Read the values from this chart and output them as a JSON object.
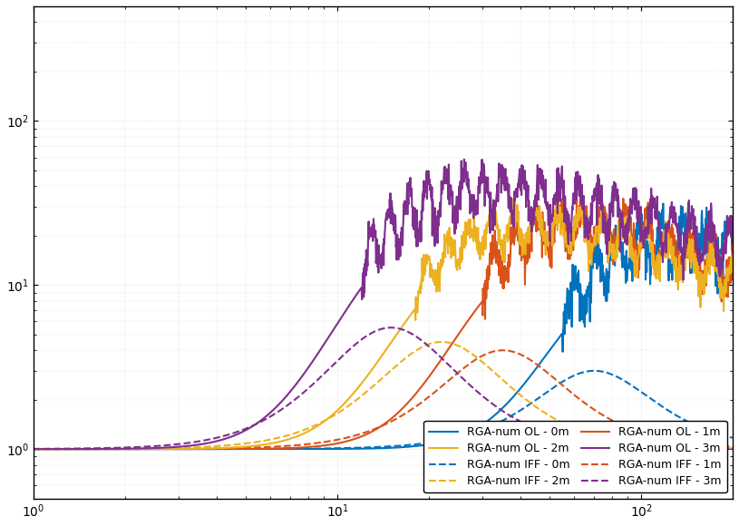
{
  "title": "",
  "xlabel": "",
  "ylabel": "",
  "xlim": [
    1,
    200
  ],
  "ylim": [
    0.5,
    500
  ],
  "colors": {
    "0m": "#0072BD",
    "1m": "#D95319",
    "2m": "#EDB120",
    "3m": "#7E2F8E"
  },
  "legend": [
    {
      "label": "RGA-num OL - 0m",
      "color": "#0072BD",
      "ls": "solid",
      "lw": 1.5
    },
    {
      "label": "RGA-num IFF - 0m",
      "color": "#0072BD",
      "ls": "dashed",
      "lw": 1.5
    },
    {
      "label": "RGA-num OL - 1m",
      "color": "#D95319",
      "ls": "solid",
      "lw": 1.5
    },
    {
      "label": "RGA-num IFF - 1m",
      "color": "#D95319",
      "ls": "dashed",
      "lw": 1.5
    },
    {
      "label": "RGA-num OL - 2m",
      "color": "#EDB120",
      "ls": "solid",
      "lw": 1.5
    },
    {
      "label": "RGA-num IFF - 2m",
      "color": "#EDB120",
      "ls": "dashed",
      "lw": 1.5
    },
    {
      "label": "RGA-num OL - 3m",
      "color": "#7E2F8E",
      "ls": "solid",
      "lw": 1.5
    },
    {
      "label": "RGA-num IFF - 3m",
      "color": "#7E2F8E",
      "ls": "dashed",
      "lw": 1.5
    }
  ],
  "background_color": "#FFFFFF",
  "grid_color": "#CCCCCC"
}
